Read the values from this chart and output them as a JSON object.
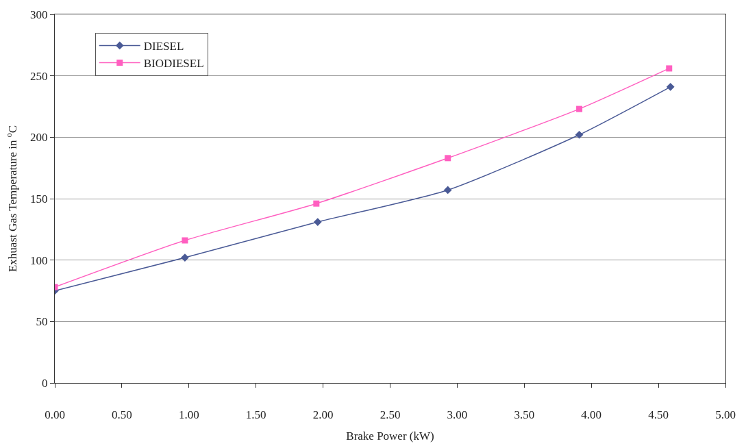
{
  "chart_data": {
    "type": "line",
    "xlabel": "Brake Power (kW)",
    "ylabel": "Exhuast Gas Temperature in $^{o}$C",
    "xlim": [
      0,
      5
    ],
    "xticks": [
      {
        "value": 0,
        "label": "0.00"
      },
      {
        "value": 0.5,
        "label": "0.50"
      },
      {
        "value": 1,
        "label": "1.00"
      },
      {
        "value": 1.5,
        "label": "1.50"
      },
      {
        "value": 2,
        "label": "2.00"
      },
      {
        "value": 2.5,
        "label": "2.50"
      },
      {
        "value": 3,
        "label": "3.00"
      },
      {
        "value": 3.5,
        "label": "3.50"
      },
      {
        "value": 4,
        "label": "4.00"
      },
      {
        "value": 4.5,
        "label": "4.50"
      },
      {
        "value": 5,
        "label": "5.00"
      }
    ],
    "ylim": [
      0,
      300
    ],
    "yticks": [
      0,
      50,
      100,
      150,
      200,
      250,
      300
    ],
    "grid": "y",
    "legend": "top left",
    "series": [
      {
        "name": "DIESEL",
        "color": "#4a5a96",
        "marker": "diamond",
        "x": [
          0,
          0.97,
          1.96,
          2.93,
          3.91,
          4.59
        ],
        "values": [
          75,
          102,
          131,
          157,
          202,
          241
        ]
      },
      {
        "name": "BIODIESEL",
        "color": "#ff5fc0",
        "marker": "square",
        "x": [
          0,
          0.97,
          1.95,
          2.93,
          3.91,
          4.58
        ],
        "values": [
          78,
          116,
          146,
          183,
          223,
          256
        ]
      }
    ]
  }
}
